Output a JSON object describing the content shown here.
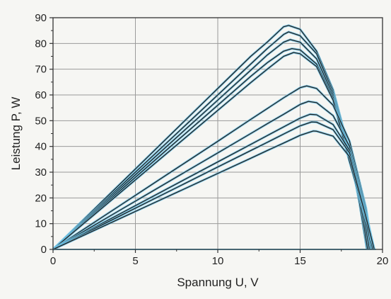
{
  "chart_data": {
    "type": "line",
    "title": "",
    "xlabel": "Spannung U,  V",
    "ylabel": "Leistung P,  W",
    "xlim": [
      0,
      20
    ],
    "ylim": [
      0,
      90
    ],
    "xticks": [
      0,
      5,
      10,
      15,
      20
    ],
    "yticks": [
      0,
      10,
      20,
      30,
      40,
      50,
      60,
      70,
      80,
      90
    ],
    "grid": true,
    "legend": "none",
    "colors": {
      "measured": "#222222",
      "model": "#6ec3e6",
      "grid": "#9a9a9a",
      "frame": "#333333"
    },
    "series": [
      {
        "x": [
          0,
          2,
          4,
          6,
          8,
          10,
          12,
          13,
          14,
          14.3,
          15,
          16,
          17,
          18,
          18.6,
          19.05
        ],
        "y": [
          0,
          12.5,
          25,
          37.5,
          50,
          62.5,
          75,
          80.5,
          86.5,
          87,
          85.5,
          77,
          62,
          38,
          18,
          0
        ]
      },
      {
        "x": [
          0,
          2,
          4,
          6,
          8,
          10,
          12,
          13,
          14,
          14.3,
          15,
          16,
          17,
          18,
          18.7,
          19.1
        ],
        "y": [
          0,
          12,
          24,
          36,
          48,
          60,
          72,
          78,
          83.5,
          84.5,
          83,
          76,
          61,
          37,
          17,
          0
        ]
      },
      {
        "x": [
          0,
          2,
          4,
          6,
          8,
          10,
          12,
          13,
          14,
          14.4,
          15,
          16,
          17,
          18,
          18.8,
          19.2
        ],
        "y": [
          0,
          11.6,
          23.2,
          34.8,
          46.4,
          58,
          69.6,
          75.5,
          80.5,
          81.5,
          80.5,
          74,
          60,
          36,
          16,
          0
        ]
      },
      {
        "x": [
          0,
          2,
          4,
          6,
          8,
          10,
          12,
          13,
          14,
          14.5,
          15,
          16,
          17,
          18,
          18.9,
          19.3
        ],
        "y": [
          0,
          11.2,
          22.4,
          33.6,
          44.8,
          56,
          67.2,
          72.5,
          77,
          78,
          77.5,
          72,
          59,
          35,
          15,
          0
        ]
      },
      {
        "x": [
          0,
          2,
          4,
          6,
          8,
          10,
          12,
          13,
          14,
          14.6,
          15,
          16,
          17,
          18,
          18.9,
          19.35
        ],
        "y": [
          0,
          10.8,
          21.6,
          32.4,
          43.2,
          54,
          64.8,
          70,
          75,
          76.5,
          76,
          71,
          58,
          34,
          14,
          0
        ]
      },
      {
        "x": [
          0,
          2,
          4,
          6,
          8,
          10,
          12,
          13,
          14,
          15,
          15.4,
          16,
          17,
          18,
          19,
          19.4
        ],
        "y": [
          0,
          8.4,
          16.8,
          25.2,
          33.6,
          42,
          50.5,
          54.7,
          58.9,
          62.8,
          63.5,
          62.5,
          56,
          42,
          16,
          0
        ]
      },
      {
        "x": [
          0,
          2,
          4,
          6,
          8,
          10,
          12,
          13,
          14,
          15,
          15.5,
          16,
          17,
          18,
          19,
          19.4
        ],
        "y": [
          0,
          7.5,
          15,
          22.5,
          30,
          37.5,
          45,
          48.8,
          52.5,
          56.3,
          57.5,
          57,
          52,
          40,
          15,
          0
        ]
      },
      {
        "x": [
          0,
          2,
          4,
          6,
          8,
          10,
          12,
          13,
          14,
          15,
          15.6,
          16,
          17,
          18,
          19,
          19.5
        ],
        "y": [
          0,
          6.8,
          13.6,
          20.4,
          27.2,
          34,
          40.8,
          44.2,
          47.6,
          51,
          52.5,
          52.3,
          48.5,
          38.5,
          14,
          0
        ]
      },
      {
        "x": [
          0,
          2,
          4,
          6,
          8,
          10,
          12,
          13,
          14,
          15,
          15.7,
          16,
          17,
          18,
          19,
          19.5
        ],
        "y": [
          0,
          6.4,
          12.8,
          19.2,
          25.6,
          32,
          38.4,
          41.6,
          44.8,
          48,
          49.5,
          49.4,
          46.5,
          37.5,
          13,
          0
        ]
      },
      {
        "x": [
          0,
          2,
          4,
          6,
          8,
          10,
          12,
          13,
          14,
          15,
          15.8,
          16,
          17,
          18,
          19,
          19.5
        ],
        "y": [
          0,
          5.9,
          11.8,
          17.7,
          23.6,
          29.5,
          35.4,
          38.4,
          41.3,
          44.3,
          46,
          45.9,
          44,
          36,
          12.5,
          0
        ]
      }
    ]
  }
}
